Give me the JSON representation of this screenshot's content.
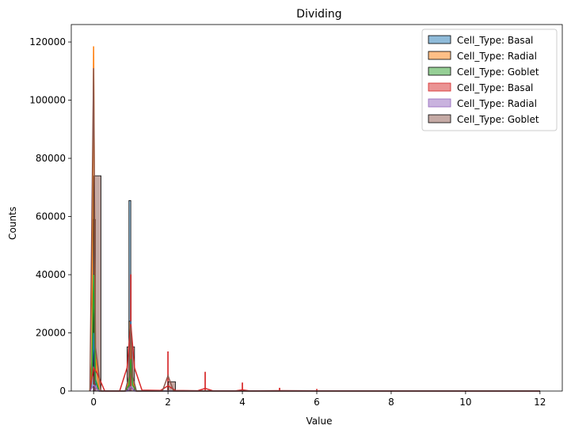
{
  "chart_data": {
    "type": "bar",
    "title": "Dividing",
    "xlabel": "Value",
    "ylabel": "Counts",
    "xlim": [
      -0.6,
      12.6
    ],
    "ylim": [
      0,
      126000
    ],
    "xticks": [
      0,
      2,
      4,
      6,
      8,
      10,
      12
    ],
    "yticks": [
      0,
      20000,
      40000,
      60000,
      80000,
      100000,
      120000
    ],
    "grid": false,
    "legend_position": "top-right",
    "series": [
      {
        "name": "Cell_Type: Basal",
        "color": "#1f77b4",
        "bars": [
          {
            "x0": 0.0,
            "x1": 0.05,
            "h": 20000
          },
          {
            "x0": 0.95,
            "x1": 1.0,
            "h": 65500
          }
        ],
        "kde": [
          [
            -0.1,
            0
          ],
          [
            -0.05,
            2000
          ],
          [
            0,
            20000
          ],
          [
            0.05,
            3000
          ],
          [
            0.15,
            0
          ],
          [
            0.85,
            0
          ],
          [
            0.95,
            5000
          ],
          [
            1.0,
            24000
          ],
          [
            1.05,
            5000
          ],
          [
            1.15,
            0
          ],
          [
            12,
            0
          ]
        ]
      },
      {
        "name": "Cell_Type: Radial",
        "color": "#ff7f0e",
        "bars": [
          {
            "x0": 0.0,
            "x1": 0.05,
            "h": 59000
          },
          {
            "x0": 0.95,
            "x1": 1.0,
            "h": 24000
          }
        ],
        "kde": [
          [
            -0.1,
            0
          ],
          [
            -0.05,
            10000
          ],
          [
            0,
            118500
          ],
          [
            0.05,
            12000
          ],
          [
            0.15,
            0
          ],
          [
            0.85,
            0
          ],
          [
            0.95,
            3000
          ],
          [
            1.0,
            20000
          ],
          [
            1.05,
            3000
          ],
          [
            1.15,
            0
          ],
          [
            12,
            0
          ]
        ]
      },
      {
        "name": "Cell_Type: Goblet",
        "color": "#2ca02c",
        "bars": [
          {
            "x0": 0.0,
            "x1": 0.05,
            "h": 40000
          },
          {
            "x0": 0.95,
            "x1": 1.0,
            "h": 11000
          }
        ],
        "kde": [
          [
            -0.1,
            0
          ],
          [
            -0.05,
            4000
          ],
          [
            0,
            40000
          ],
          [
            0.05,
            4000
          ],
          [
            0.15,
            0
          ],
          [
            0.85,
            0
          ],
          [
            0.95,
            2000
          ],
          [
            1.0,
            11000
          ],
          [
            1.05,
            2000
          ],
          [
            1.15,
            0
          ],
          [
            12,
            0
          ]
        ]
      },
      {
        "name": "Cell_Type: Basal",
        "color": "#d62728",
        "bars": [
          {
            "x0": 0.0,
            "x1": 0.02,
            "h": 7000
          },
          {
            "x0": 0.99,
            "x1": 1.01,
            "h": 40000
          },
          {
            "x0": 1.99,
            "x1": 2.01,
            "h": 13500
          },
          {
            "x0": 2.99,
            "x1": 3.01,
            "h": 6500
          },
          {
            "x0": 3.99,
            "x1": 4.01,
            "h": 2800
          },
          {
            "x0": 4.99,
            "x1": 5.01,
            "h": 1000
          },
          {
            "x0": 5.99,
            "x1": 6.01,
            "h": 600
          }
        ],
        "kde": [
          [
            -0.1,
            0
          ],
          [
            0,
            8000
          ],
          [
            0.1,
            6000
          ],
          [
            0.3,
            0
          ],
          [
            0.7,
            0
          ],
          [
            0.9,
            8000
          ],
          [
            1.0,
            23000
          ],
          [
            1.1,
            8000
          ],
          [
            1.3,
            300
          ],
          [
            1.8,
            200
          ],
          [
            2.0,
            1800
          ],
          [
            2.2,
            200
          ],
          [
            2.8,
            100
          ],
          [
            3.0,
            900
          ],
          [
            3.2,
            100
          ],
          [
            3.8,
            50
          ],
          [
            4.0,
            400
          ],
          [
            4.2,
            50
          ],
          [
            5.0,
            150
          ],
          [
            6.0,
            60
          ],
          [
            12,
            0
          ]
        ]
      },
      {
        "name": "Cell_Type: Radial",
        "color": "#9467bd",
        "bars": [
          {
            "x0": 0.0,
            "x1": 0.05,
            "h": 2000
          },
          {
            "x0": 0.95,
            "x1": 1.0,
            "h": 1500
          }
        ],
        "kde": [
          [
            -0.1,
            0
          ],
          [
            0,
            2000
          ],
          [
            0.15,
            0
          ],
          [
            0.9,
            0
          ],
          [
            1.0,
            1500
          ],
          [
            1.1,
            0
          ],
          [
            12,
            0
          ]
        ]
      },
      {
        "name": "Cell_Type: Goblet",
        "color": "#8c564b",
        "bars": [
          {
            "x0": 0.0,
            "x1": 0.2,
            "h": 74000
          },
          {
            "x0": 0.9,
            "x1": 1.1,
            "h": 15200
          },
          {
            "x0": 2.0,
            "x1": 2.2,
            "h": 3200
          }
        ],
        "kde": [
          [
            -0.1,
            0
          ],
          [
            0,
            111000
          ],
          [
            0.05,
            15000
          ],
          [
            0.2,
            0
          ],
          [
            0.85,
            0
          ],
          [
            0.95,
            5000
          ],
          [
            1.0,
            22000
          ],
          [
            1.05,
            5000
          ],
          [
            1.15,
            0
          ],
          [
            1.85,
            0
          ],
          [
            2.0,
            5300
          ],
          [
            2.15,
            0
          ],
          [
            12,
            0
          ]
        ]
      }
    ]
  }
}
